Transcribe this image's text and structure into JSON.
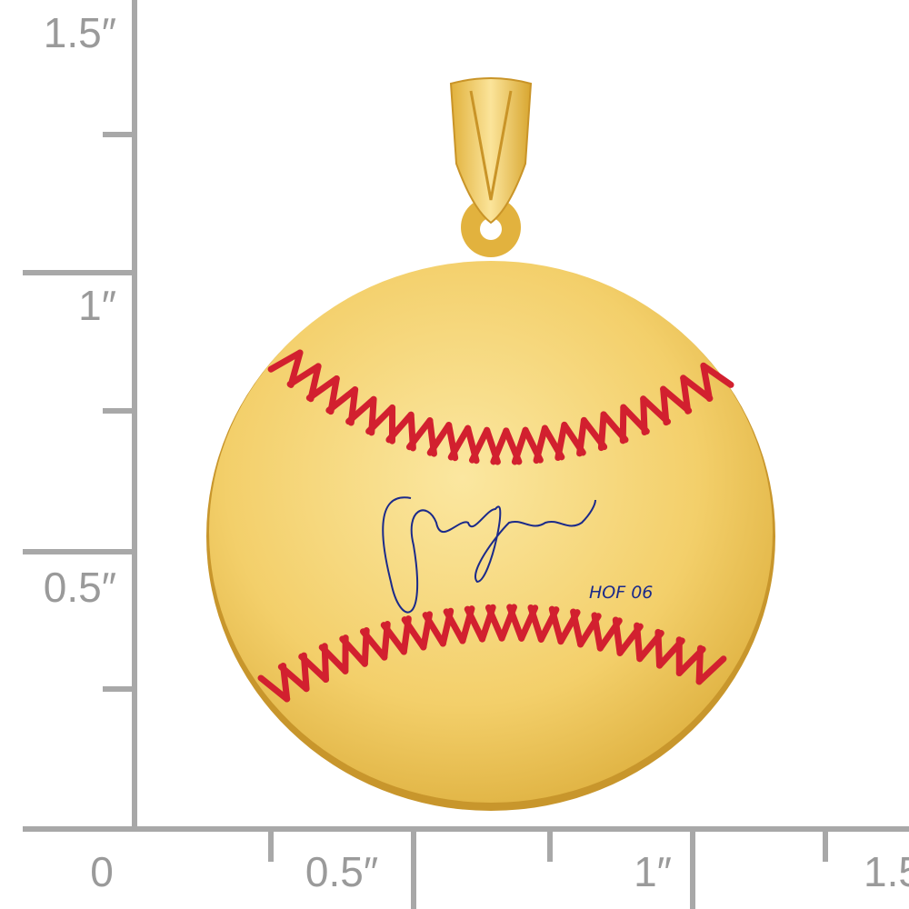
{
  "ruler": {
    "vertical_labels": [
      "1.5″",
      "1″",
      "0.5″"
    ],
    "horizontal_labels": [
      "0",
      "0.5″",
      "1″",
      "1.5"
    ]
  },
  "pendant": {
    "inscription": "HOF 06"
  }
}
